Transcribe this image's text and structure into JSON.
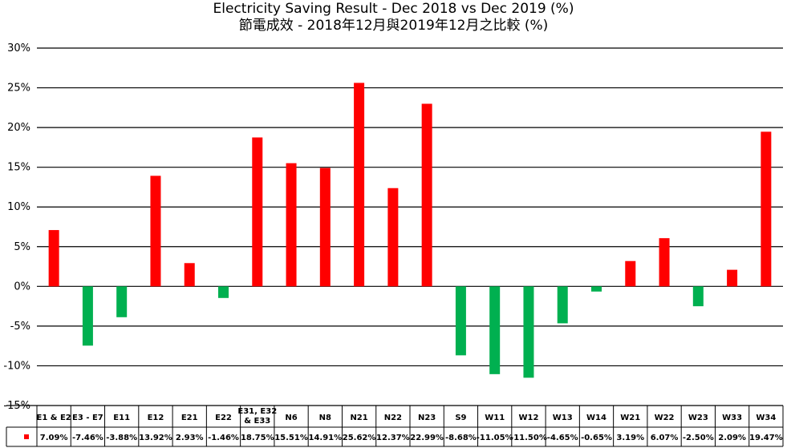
{
  "chart_data": {
    "type": "bar",
    "title": "Electricity Saving Result - Dec 2018 vs Dec 2019 (%)",
    "subtitle": "節電成效 - 2018年12月與2019年12月之比較 (%)",
    "xlabel": "",
    "ylabel": "",
    "ylim": [
      -15,
      30
    ],
    "yticks": [
      "30%",
      "25%",
      "20%",
      "15%",
      "10%",
      "5%",
      "0%",
      "-5%",
      "-10%",
      "-15%"
    ],
    "grid": true,
    "categories": [
      "E1 & E2",
      "E3 - E7",
      "E11",
      "E12",
      "E21",
      "E22",
      "E31, E32 & E33",
      "N6",
      "N8",
      "N21",
      "N22",
      "N23",
      "S9",
      "W11",
      "W12",
      "W13",
      "W14",
      "W21",
      "W22",
      "W23",
      "W33",
      "W34"
    ],
    "category_lines": [
      [
        "E1 & E2"
      ],
      [
        "E3 - E7"
      ],
      [
        "E11"
      ],
      [
        "E12"
      ],
      [
        "E21"
      ],
      [
        "E22"
      ],
      [
        "E31, E32",
        "& E33"
      ],
      [
        "N6"
      ],
      [
        "N8"
      ],
      [
        "N21"
      ],
      [
        "N22"
      ],
      [
        "N23"
      ],
      [
        "S9"
      ],
      [
        "W11"
      ],
      [
        "W12"
      ],
      [
        "W13"
      ],
      [
        "W14"
      ],
      [
        "W21"
      ],
      [
        "W22"
      ],
      [
        "W23"
      ],
      [
        "W33"
      ],
      [
        "W34"
      ]
    ],
    "values": [
      7.09,
      -7.46,
      -3.88,
      13.92,
      2.93,
      -1.46,
      18.75,
      15.51,
      14.91,
      25.62,
      12.37,
      22.99,
      -8.68,
      -11.05,
      -11.5,
      -4.65,
      -0.65,
      3.19,
      6.07,
      -2.5,
      2.09,
      19.47
    ],
    "value_labels": [
      "7.09%",
      "-7.46%",
      "-3.88%",
      "13.92%",
      "2.93%",
      "-1.46%",
      "18.75%",
      "15.51%",
      "14.91%",
      "25.62%",
      "12.37%",
      "22.99%",
      "-8.68%",
      "-11.05%",
      "-11.50%",
      "-4.65%",
      "-0.65%",
      "3.19%",
      "6.07%",
      "-2.50%",
      "2.09%",
      "19.47%"
    ],
    "colors": {
      "positive": "#ff0000",
      "negative": "#00b050"
    },
    "legend_marker_color": "#ff0000"
  }
}
